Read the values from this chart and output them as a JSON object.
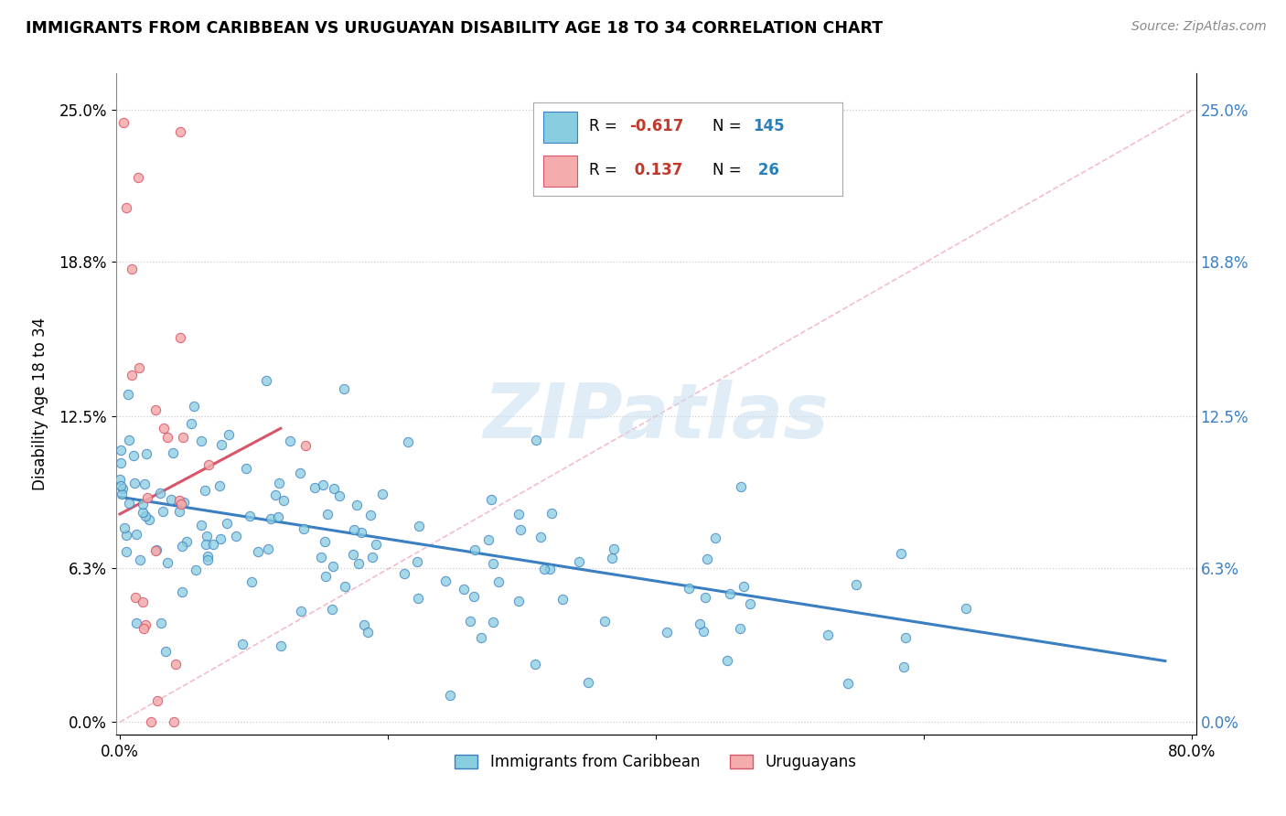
{
  "title": "IMMIGRANTS FROM CARIBBEAN VS URUGUAYAN DISABILITY AGE 18 TO 34 CORRELATION CHART",
  "source": "Source: ZipAtlas.com",
  "ylabel": "Disability Age 18 to 34",
  "x_min": 0.0,
  "x_max": 0.8,
  "y_min": -0.005,
  "y_max": 0.265,
  "x_ticks": [
    0.0,
    0.2,
    0.4,
    0.6,
    0.8
  ],
  "x_tick_labels": [
    "0.0%",
    "",
    "",
    "",
    "80.0%"
  ],
  "y_ticks": [
    0.0,
    0.063,
    0.125,
    0.188,
    0.25
  ],
  "y_tick_labels": [
    "0.0%",
    "6.3%",
    "12.5%",
    "18.8%",
    "25.0%"
  ],
  "blue_color": "#89CDE0",
  "pink_color": "#F4ACAC",
  "blue_line_color": "#3A7FC1",
  "pink_line_color": "#D9566A",
  "diag_color": "#F0A0B8",
  "R_blue": -0.617,
  "N_blue": 145,
  "R_pink": 0.137,
  "N_pink": 26,
  "legend_entries": [
    "Immigrants from Caribbean",
    "Uruguayans"
  ],
  "watermark_color": "#C8DFF0",
  "blue_seed": 42,
  "pink_seed": 123
}
